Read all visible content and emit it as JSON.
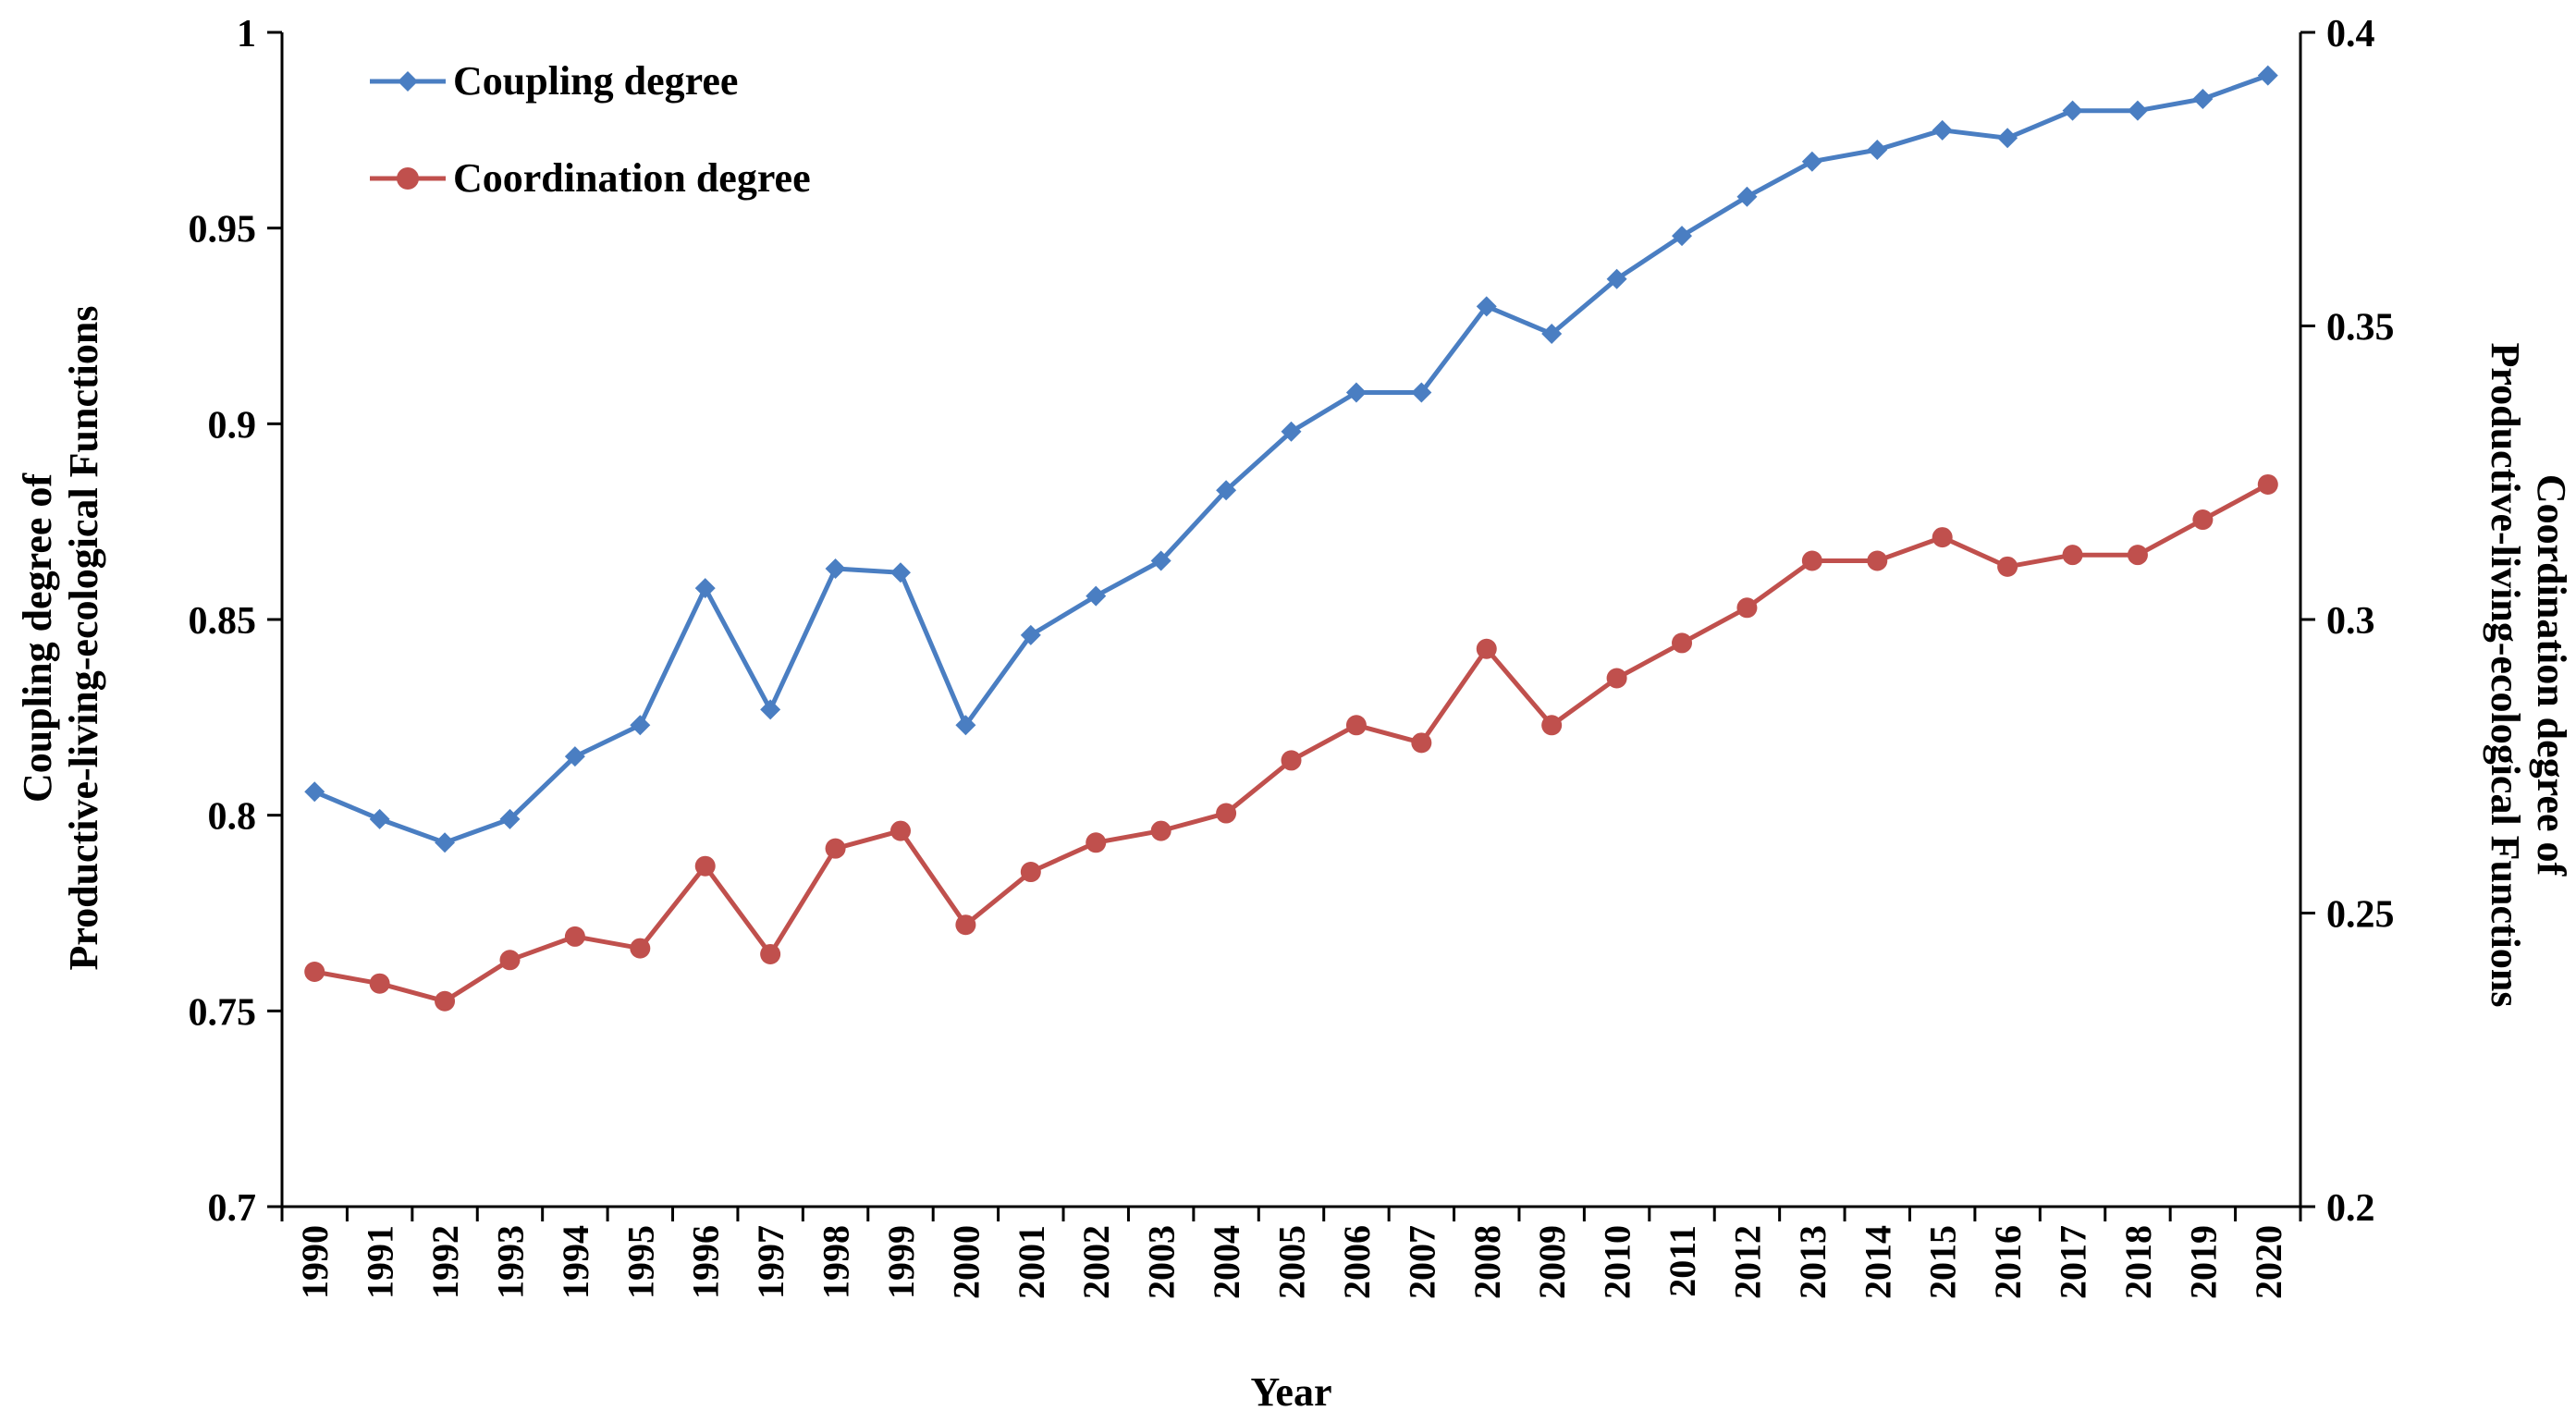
{
  "chart_data": {
    "type": "line",
    "xlabel": "Year",
    "ylabel_left": [
      "Coupling degree of",
      "Productive-living-ecological Functions"
    ],
    "ylabel_right": [
      "Coordination degree of",
      "Productive-living-ecological Functions"
    ],
    "categories": [
      "1990",
      "1991",
      "1992",
      "1993",
      "1994",
      "1995",
      "1996",
      "1997",
      "1998",
      "1999",
      "2000",
      "2001",
      "2002",
      "2003",
      "2004",
      "2005",
      "2006",
      "2007",
      "2008",
      "2009",
      "2010",
      "2011",
      "2012",
      "2013",
      "2014",
      "2015",
      "2016",
      "2017",
      "2018",
      "2019",
      "2020"
    ],
    "y_left": {
      "min": 0.7,
      "max": 1.0,
      "ticks": [
        "0.7",
        "0.75",
        "0.8",
        "0.85",
        "0.9",
        "0.95",
        "1"
      ]
    },
    "y_right": {
      "min": 0.2,
      "max": 0.4,
      "ticks": [
        "0.2",
        "0.25",
        "0.3",
        "0.35",
        "0.4"
      ]
    },
    "legend_position": "top-left",
    "grid": false,
    "series": [
      {
        "name": "Coupling degree",
        "axis": "left",
        "color": "#4a7ec2",
        "marker": "diamond",
        "values": [
          0.806,
          0.799,
          0.793,
          0.799,
          0.815,
          0.823,
          0.858,
          0.827,
          0.863,
          0.862,
          0.823,
          0.846,
          0.856,
          0.865,
          0.883,
          0.898,
          0.908,
          0.908,
          0.93,
          0.923,
          0.937,
          0.948,
          0.958,
          0.967,
          0.97,
          0.975,
          0.973,
          0.98,
          0.98,
          0.983,
          0.989
        ]
      },
      {
        "name": "Coordination degree",
        "axis": "right",
        "color": "#c0504d",
        "marker": "circle",
        "values": [
          0.24,
          0.238,
          0.235,
          0.242,
          0.246,
          0.244,
          0.258,
          0.243,
          0.261,
          0.264,
          0.248,
          0.257,
          0.262,
          0.264,
          0.267,
          0.276,
          0.282,
          0.279,
          0.295,
          0.282,
          0.29,
          0.296,
          0.302,
          0.31,
          0.31,
          0.314,
          0.309,
          0.311,
          0.311,
          0.317,
          0.323
        ]
      }
    ]
  }
}
